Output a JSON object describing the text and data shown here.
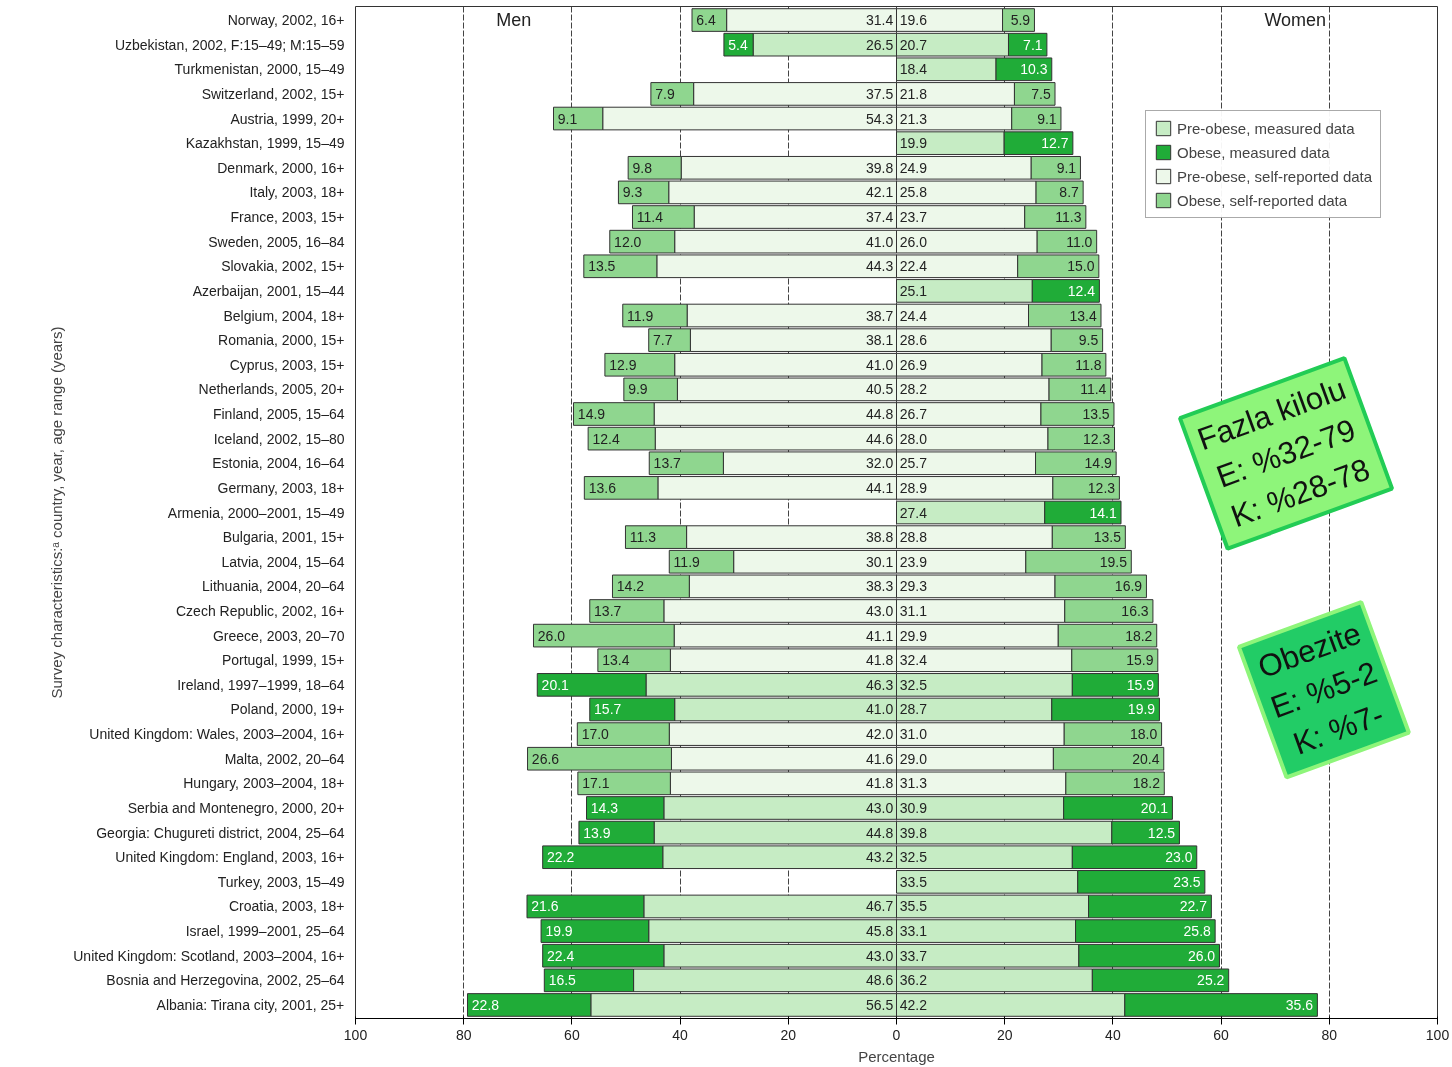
{
  "chart_data": {
    "type": "bar",
    "orientation": "horizontal",
    "xlabel": "Percentage",
    "ylabel": "Survey characteristics:ᵃ country, year, age range (years)",
    "categories": [
      "Norway, 2002, 16+",
      "Uzbekistan, 2002, F:15–49; M:15–59",
      "Turkmenistan, 2000, 15–49",
      "Switzerland, 2002, 15+",
      "Austria, 1999, 20+",
      "Kazakhstan, 1999, 15–49",
      "Denmark, 2000, 16+",
      "Italy, 2003, 18+",
      "France, 2003, 15+",
      "Sweden, 2005, 16–84",
      "Slovakia, 2002, 15+",
      "Azerbaijan, 2001, 15–44",
      "Belgium, 2004, 18+",
      "Romania, 2000, 15+",
      "Cyprus, 2003, 15+",
      "Netherlands, 2005, 20+",
      "Finland, 2005, 15–64",
      "Iceland, 2002, 15–80",
      "Estonia, 2004, 16–64",
      "Germany, 2003, 18+",
      "Armenia, 2000–2001, 15–49",
      "Bulgaria, 2001, 15+",
      "Latvia, 2004, 15–64",
      "Lithuania, 2004, 20–64",
      "Czech Republic, 2002, 16+",
      "Greece, 2003, 20–70",
      "Portugal, 1999, 15+",
      "Ireland, 1997–1999, 18–64",
      "Poland, 2000, 19+",
      "United Kingdom: Wales, 2003–2004, 16+",
      "Malta, 2002, 20–64",
      "Hungary, 2003–2004, 18+",
      "Serbia and Montenegro, 2000, 20+",
      "Georgia: Chugureti district, 2004, 25–64",
      "United Kingdom: England, 2003, 16+",
      "Turkey, 2003, 15–49",
      "Croatia, 2003, 18+",
      "Israel, 1999–2001, 25–64",
      "United Kingdom: Scotland, 2003–2004, 16+",
      "Bosnia and Herzegovina, 2002, 25–64",
      "Albania: Tirana city, 2001, 25+"
    ],
    "series": [
      {
        "name": "Pre-obese, measured data",
        "color": "#c6ecc4",
        "values": [
          null,
          26.5,
          null,
          null,
          null,
          null,
          null,
          null,
          null,
          null,
          null,
          null,
          null,
          null,
          null,
          null,
          null,
          null,
          null,
          null,
          null,
          null,
          null,
          null,
          null,
          null,
          null,
          46.3,
          41.0,
          null,
          null,
          null,
          43.0,
          44.8,
          43.2,
          null,
          46.7,
          45.8,
          43.0,
          48.6,
          56.5
        ],
        "base": [
          null,
          -26.5,
          null,
          null,
          null,
          null,
          null,
          null,
          null,
          null,
          null,
          null,
          null,
          null,
          null,
          null,
          null,
          null,
          null,
          null,
          null,
          null,
          null,
          null,
          null,
          null,
          null,
          -46.3,
          -41.0,
          null,
          null,
          null,
          -43.0,
          -44.8,
          -43.2,
          null,
          -46.7,
          -45.8,
          -43.0,
          -48.6,
          -56.5
        ],
        "value_labels": [
          null,
          "26.5",
          null,
          null,
          null,
          null,
          null,
          null,
          null,
          null,
          null,
          null,
          null,
          null,
          null,
          null,
          null,
          null,
          null,
          null,
          null,
          null,
          null,
          null,
          null,
          null,
          null,
          "46.3",
          "41.0",
          null,
          null,
          null,
          "43.0",
          "44.8",
          "43.2",
          null,
          "46.7",
          "45.8",
          "43.0",
          "48.6",
          "56.5"
        ]
      },
      {
        "name": "Obese, measured data",
        "color": "#20ac38",
        "values": [
          null,
          5.4,
          null,
          null,
          null,
          null,
          null,
          null,
          null,
          null,
          null,
          null,
          null,
          null,
          null,
          null,
          null,
          null,
          null,
          null,
          null,
          null,
          null,
          null,
          null,
          null,
          null,
          20.1,
          15.7,
          null,
          null,
          null,
          14.3,
          13.9,
          22.2,
          null,
          21.6,
          19.9,
          22.4,
          16.5,
          22.8
        ],
        "base": [
          null,
          -31.9,
          null,
          null,
          null,
          null,
          null,
          null,
          null,
          null,
          null,
          null,
          null,
          null,
          null,
          null,
          null,
          null,
          null,
          null,
          null,
          null,
          null,
          null,
          null,
          null,
          null,
          -66.4,
          -56.7,
          null,
          null,
          null,
          -57.3,
          -58.7,
          -65.4,
          null,
          -68.3,
          -65.7,
          -65.4,
          -65.1,
          -79.3
        ],
        "value_labels": [
          null,
          "5.4",
          null,
          null,
          null,
          null,
          null,
          null,
          null,
          null,
          null,
          null,
          null,
          null,
          null,
          null,
          null,
          null,
          null,
          null,
          null,
          null,
          null,
          null,
          null,
          null,
          null,
          "20.1",
          "15.7",
          null,
          null,
          null,
          "14.3",
          "13.9",
          "22.2",
          null,
          "21.6",
          "19.9",
          "22.4",
          "16.5",
          "22.8"
        ]
      },
      {
        "name": "Pre-obese, self-reported data",
        "color": "#edf8ea",
        "values": [
          31.4,
          null,
          null,
          37.5,
          54.3,
          null,
          39.8,
          42.1,
          37.4,
          41.0,
          44.3,
          null,
          38.7,
          38.1,
          41.0,
          40.5,
          44.8,
          44.6,
          32.0,
          44.1,
          null,
          38.8,
          30.1,
          38.3,
          43.0,
          41.1,
          41.8,
          null,
          null,
          42.0,
          41.6,
          41.8,
          null,
          null,
          null,
          null,
          null,
          null,
          null,
          null,
          null
        ],
        "base": [
          -31.4,
          null,
          null,
          -37.5,
          -54.3,
          null,
          -39.8,
          -42.1,
          -37.4,
          -41.0,
          -44.3,
          null,
          -38.7,
          -38.1,
          -41.0,
          -40.5,
          -44.8,
          -44.6,
          -32.0,
          -44.1,
          null,
          -38.8,
          -30.1,
          -38.3,
          -43.0,
          -41.1,
          -41.8,
          null,
          null,
          -42.0,
          -41.6,
          -41.8,
          null,
          null,
          null,
          null,
          null,
          null,
          null,
          null,
          null
        ],
        "value_labels": [
          "31.4",
          null,
          null,
          "37.5",
          "54.3",
          null,
          "39.8",
          "42.1",
          "37.4",
          "41.0",
          "44.3",
          null,
          "38.7",
          "38.1",
          "41.0",
          "40.5",
          "44.8",
          "44.6",
          "32.0",
          "44.1",
          null,
          "38.8",
          "30.1",
          "38.3",
          "43.0",
          "41.1",
          "41.8",
          null,
          null,
          "42.0",
          "41.6",
          "41.8",
          null,
          null,
          null,
          null,
          null,
          null,
          null,
          null,
          null
        ]
      },
      {
        "name": "Obese, self-reported data",
        "color": "#8fd68f",
        "values": [
          6.4,
          null,
          null,
          7.9,
          9.1,
          null,
          9.8,
          9.3,
          11.4,
          12.0,
          13.5,
          null,
          11.9,
          7.7,
          12.9,
          9.9,
          14.9,
          12.4,
          13.7,
          13.6,
          null,
          11.3,
          11.9,
          14.2,
          13.7,
          26.0,
          13.4,
          null,
          null,
          17.0,
          26.6,
          17.1,
          null,
          null,
          null,
          null,
          null,
          null,
          null,
          null,
          null
        ],
        "base": [
          -37.8,
          null,
          null,
          -45.4,
          -63.4,
          null,
          -49.6,
          -51.4,
          -48.8,
          -53.0,
          -57.8,
          null,
          -50.6,
          -45.8,
          -53.9,
          -50.4,
          -59.7,
          -57.0,
          -45.7,
          -57.7,
          null,
          -50.1,
          -42.0,
          -52.5,
          -56.7,
          -67.1,
          -55.2,
          null,
          null,
          -59.0,
          -68.2,
          -58.9,
          null,
          null,
          null,
          null,
          null,
          null,
          null,
          null,
          null
        ],
        "value_labels": [
          "6.4",
          null,
          null,
          "7.9",
          "9.1",
          null,
          "9.8",
          "9.3",
          "11.4",
          "12.0",
          "13.5",
          null,
          "11.9",
          "7.7",
          "12.9",
          "9.9",
          "14.9",
          "12.4",
          "13.7",
          "13.6",
          null,
          "11.3",
          "11.9",
          "14.2",
          "13.7",
          "26.0",
          "13.4",
          null,
          null,
          "17.0",
          "26.6",
          "17.1",
          null,
          null,
          null,
          null,
          null,
          null,
          null,
          null,
          null
        ]
      },
      {
        "color": "#c6ecc4",
        "values": [
          null,
          20.7,
          18.4,
          null,
          null,
          19.9,
          null,
          null,
          null,
          null,
          null,
          25.1,
          null,
          null,
          null,
          null,
          null,
          null,
          null,
          null,
          27.4,
          null,
          null,
          null,
          null,
          null,
          null,
          32.5,
          28.7,
          null,
          null,
          null,
          30.9,
          39.8,
          32.5,
          33.5,
          35.5,
          33.1,
          33.7,
          36.2,
          42.2
        ],
        "base": [
          null,
          0,
          0,
          null,
          null,
          0,
          null,
          null,
          null,
          null,
          null,
          0,
          null,
          null,
          null,
          null,
          null,
          null,
          null,
          null,
          0,
          null,
          null,
          null,
          null,
          null,
          null,
          0,
          0,
          null,
          null,
          null,
          0,
          0,
          0,
          0,
          0,
          0,
          0,
          0,
          0
        ],
        "value_labels": [
          null,
          "20.7",
          "18.4",
          null,
          null,
          "19.9",
          null,
          null,
          null,
          null,
          null,
          "25.1",
          null,
          null,
          null,
          null,
          null,
          null,
          null,
          null,
          "27.4",
          null,
          null,
          null,
          null,
          null,
          null,
          "32.5",
          "28.7",
          null,
          null,
          null,
          "30.9",
          "39.8",
          "32.5",
          "33.5",
          "35.5",
          "33.1",
          "33.7",
          "36.2",
          "42.2"
        ]
      },
      {
        "color": "#20ac38",
        "values": [
          null,
          7.1,
          10.3,
          null,
          null,
          12.7,
          null,
          null,
          null,
          null,
          null,
          12.4,
          null,
          null,
          null,
          null,
          null,
          null,
          null,
          null,
          14.1,
          null,
          null,
          null,
          null,
          null,
          null,
          15.9,
          19.9,
          null,
          null,
          null,
          20.1,
          12.5,
          23.0,
          23.5,
          22.7,
          25.8,
          26.0,
          25.2,
          35.6
        ],
        "base": [
          null,
          20.7,
          18.4,
          null,
          null,
          19.9,
          null,
          null,
          null,
          null,
          null,
          25.1,
          null,
          null,
          null,
          null,
          null,
          null,
          null,
          null,
          27.4,
          null,
          null,
          null,
          null,
          null,
          null,
          32.5,
          28.7,
          null,
          null,
          null,
          30.9,
          39.8,
          32.5,
          33.5,
          35.5,
          33.1,
          33.7,
          36.2,
          42.2
        ],
        "value_labels": [
          null,
          "7.1",
          "10.3",
          null,
          null,
          "12.7",
          null,
          null,
          null,
          null,
          null,
          "12.4",
          null,
          null,
          null,
          null,
          null,
          null,
          null,
          null,
          "14.1",
          null,
          null,
          null,
          null,
          null,
          null,
          "15.9",
          "19.9",
          null,
          null,
          null,
          "20.1",
          "12.5",
          "23.0",
          "23.5",
          "22.7",
          "25.8",
          "26.0",
          "25.2",
          "35.6"
        ]
      },
      {
        "color": "#edf8ea",
        "values": [
          19.6,
          null,
          null,
          21.8,
          21.3,
          null,
          24.9,
          25.8,
          23.7,
          26.0,
          22.4,
          null,
          24.4,
          28.6,
          26.9,
          28.2,
          26.7,
          28.0,
          25.7,
          28.9,
          null,
          28.8,
          23.9,
          29.3,
          31.1,
          29.9,
          32.4,
          null,
          null,
          31.0,
          29.0,
          31.3,
          null,
          null,
          null,
          null,
          null,
          null,
          null,
          null,
          null
        ],
        "base": [
          0,
          null,
          null,
          0,
          0,
          null,
          0,
          0,
          0,
          0,
          0,
          null,
          0,
          0,
          0,
          0,
          0,
          0,
          0,
          0,
          null,
          0,
          0,
          0,
          0,
          0,
          0,
          null,
          null,
          0,
          0,
          0,
          null,
          null,
          null,
          null,
          null,
          null,
          null,
          null,
          null
        ],
        "value_labels": [
          "19.6",
          null,
          null,
          "21.8",
          "21.3",
          null,
          "24.9",
          "25.8",
          "23.7",
          "26.0",
          "22.4",
          null,
          "24.4",
          "28.6",
          "26.9",
          "28.2",
          "26.7",
          "28.0",
          "25.7",
          "28.9",
          null,
          "28.8",
          "23.9",
          "29.3",
          "31.1",
          "29.9",
          "32.4",
          null,
          null,
          "31.0",
          "29.0",
          "31.3",
          null,
          null,
          null,
          null,
          null,
          null,
          null,
          null,
          null
        ]
      },
      {
        "color": "#8fd68f",
        "values": [
          5.9,
          null,
          null,
          7.5,
          9.1,
          null,
          9.1,
          8.7,
          11.3,
          11.0,
          15.0,
          null,
          13.4,
          9.5,
          11.8,
          11.4,
          13.5,
          12.3,
          14.9,
          12.3,
          null,
          13.5,
          19.5,
          16.9,
          16.3,
          18.2,
          15.9,
          null,
          null,
          18.0,
          20.4,
          18.2,
          null,
          null,
          null,
          null,
          null,
          null,
          null,
          null,
          null
        ],
        "base": [
          19.6,
          null,
          null,
          21.8,
          21.3,
          null,
          24.9,
          25.8,
          23.7,
          26.0,
          22.4,
          null,
          24.4,
          28.6,
          26.9,
          28.2,
          26.7,
          28.0,
          25.7,
          28.9,
          null,
          28.8,
          23.9,
          29.3,
          31.1,
          29.9,
          32.4,
          null,
          null,
          31.0,
          29.0,
          31.3,
          null,
          null,
          null,
          null,
          null,
          null,
          null,
          null,
          null
        ],
        "value_labels": [
          "5.9",
          null,
          null,
          "7.5",
          "9.1",
          null,
          "9.1",
          "8.7",
          "11.3",
          "11.0",
          "15.0",
          null,
          "13.4",
          "9.5",
          "11.8",
          "11.4",
          "13.5",
          "12.3",
          "14.9",
          "12.3",
          null,
          "13.5",
          "19.5",
          "16.9",
          "16.3",
          "18.2",
          "15.9",
          null,
          null,
          "18.0",
          "20.4",
          "18.2",
          null,
          null,
          null,
          null,
          null,
          null,
          null,
          null,
          null
        ]
      }
    ],
    "xlim": [
      -100,
      100
    ],
    "xticks": [
      {
        "value": -100,
        "label": "100"
      },
      {
        "value": -80,
        "label": "80"
      },
      {
        "value": -60,
        "label": "60"
      },
      {
        "value": -40,
        "label": "40"
      },
      {
        "value": -20,
        "label": "20"
      },
      0,
      20,
      40,
      60,
      80,
      100
    ],
    "grid": "x",
    "legend": "top right",
    "annotations": [
      "Men",
      "Women",
      "Fazla kilolu\nE: %32-79\nK: %28-78",
      "Obezite\nE: %5-2\nK: %7-"
    ]
  }
}
